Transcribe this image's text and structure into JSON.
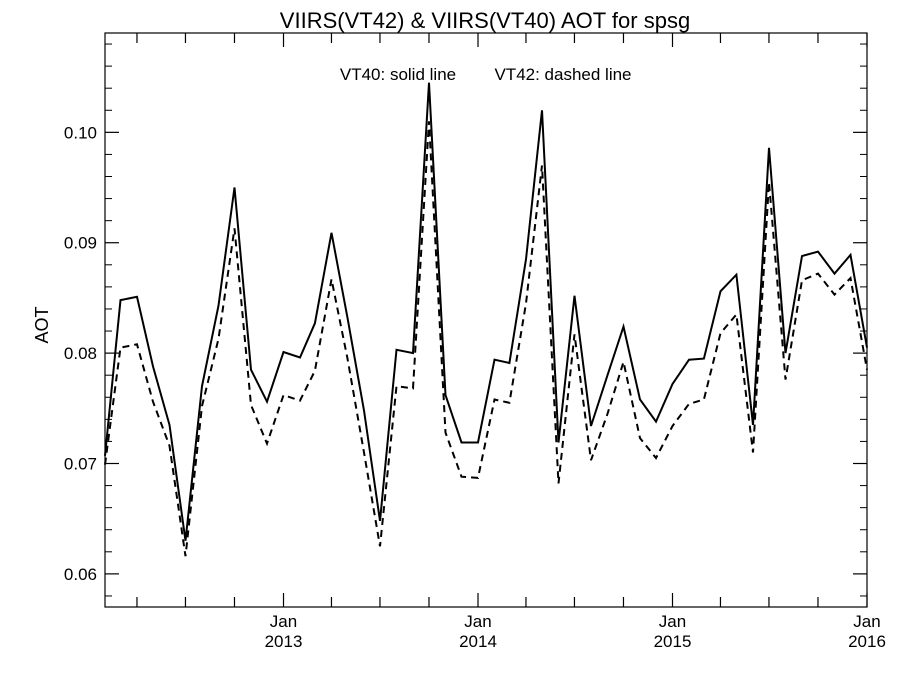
{
  "chart_data": {
    "type": "line",
    "title": "VIIRS(VT42) & VIIRS(VT40)  AOT for spsg",
    "ylabel": "AOT",
    "xlabel": "",
    "annotation_solid": "VT40: solid line",
    "annotation_dashed": "VT42: dashed line",
    "xlim": [
      "2012-02-01",
      "2016-01-01"
    ],
    "ylim": [
      0.057,
      0.109
    ],
    "yticks": [
      0.06,
      0.07,
      0.08,
      0.09,
      0.1
    ],
    "ytick_labels": [
      "0.06",
      "0.07",
      "0.08",
      "0.09",
      "0.10"
    ],
    "xtick_labels": [
      {
        "date": "2013-01-01",
        "line1": "Jan",
        "line2": "2013"
      },
      {
        "date": "2014-01-01",
        "line1": "Jan",
        "line2": "2014"
      },
      {
        "date": "2015-01-01",
        "line1": "Jan",
        "line2": "2015"
      },
      {
        "date": "2016-01-01",
        "line1": "Jan",
        "line2": "2016"
      }
    ],
    "x": [
      "2012-02-01",
      "2012-03-01",
      "2012-04-01",
      "2012-05-01",
      "2012-06-01",
      "2012-07-01",
      "2012-08-01",
      "2012-09-01",
      "2012-10-01",
      "2012-11-01",
      "2012-12-01",
      "2013-01-01",
      "2013-02-01",
      "2013-03-01",
      "2013-04-01",
      "2013-05-01",
      "2013-06-01",
      "2013-07-01",
      "2013-08-01",
      "2013-09-01",
      "2013-10-01",
      "2013-11-01",
      "2013-12-01",
      "2014-01-01",
      "2014-02-01",
      "2014-03-01",
      "2014-04-01",
      "2014-05-01",
      "2014-06-01",
      "2014-07-01",
      "2014-08-01",
      "2014-09-01",
      "2014-10-01",
      "2014-11-01",
      "2014-12-01",
      "2015-01-01",
      "2015-02-01",
      "2015-03-01",
      "2015-04-01",
      "2015-05-01",
      "2015-06-01",
      "2015-07-01",
      "2015-08-01",
      "2015-09-01",
      "2015-10-01",
      "2015-11-01",
      "2015-12-01",
      "2016-01-01"
    ],
    "series": [
      {
        "name": "VT40",
        "style": "solid",
        "color": "#000000",
        "values": [
          0.0707,
          0.0848,
          0.0851,
          0.0788,
          0.0735,
          0.063,
          0.077,
          0.0843,
          0.095,
          0.0785,
          0.0756,
          0.0801,
          0.0796,
          0.0827,
          0.0909,
          0.0832,
          0.0748,
          0.0648,
          0.0803,
          0.08,
          0.1045,
          0.0762,
          0.0719,
          0.0719,
          0.0794,
          0.0791,
          0.0885,
          0.102,
          0.0719,
          0.0852,
          0.0734,
          0.078,
          0.0824,
          0.0758,
          0.0738,
          0.0772,
          0.0794,
          0.0795,
          0.0856,
          0.0871,
          0.0735,
          0.0986,
          0.08,
          0.0888,
          0.0892,
          0.0872,
          0.0889,
          0.0805
        ]
      },
      {
        "name": "VT42",
        "style": "dashed",
        "color": "#000000",
        "values": [
          0.0699,
          0.0805,
          0.0808,
          0.0756,
          0.0716,
          0.0616,
          0.0752,
          0.0813,
          0.0913,
          0.0753,
          0.0718,
          0.0762,
          0.0757,
          0.0784,
          0.0867,
          0.0795,
          0.071,
          0.0625,
          0.077,
          0.0768,
          0.101,
          0.0728,
          0.0688,
          0.0687,
          0.0758,
          0.0755,
          0.0845,
          0.097,
          0.0682,
          0.0817,
          0.0703,
          0.0745,
          0.0792,
          0.0723,
          0.0705,
          0.0734,
          0.0754,
          0.0758,
          0.0818,
          0.0835,
          0.071,
          0.0955,
          0.0776,
          0.0866,
          0.0872,
          0.0853,
          0.0868,
          0.0785
        ]
      }
    ]
  }
}
